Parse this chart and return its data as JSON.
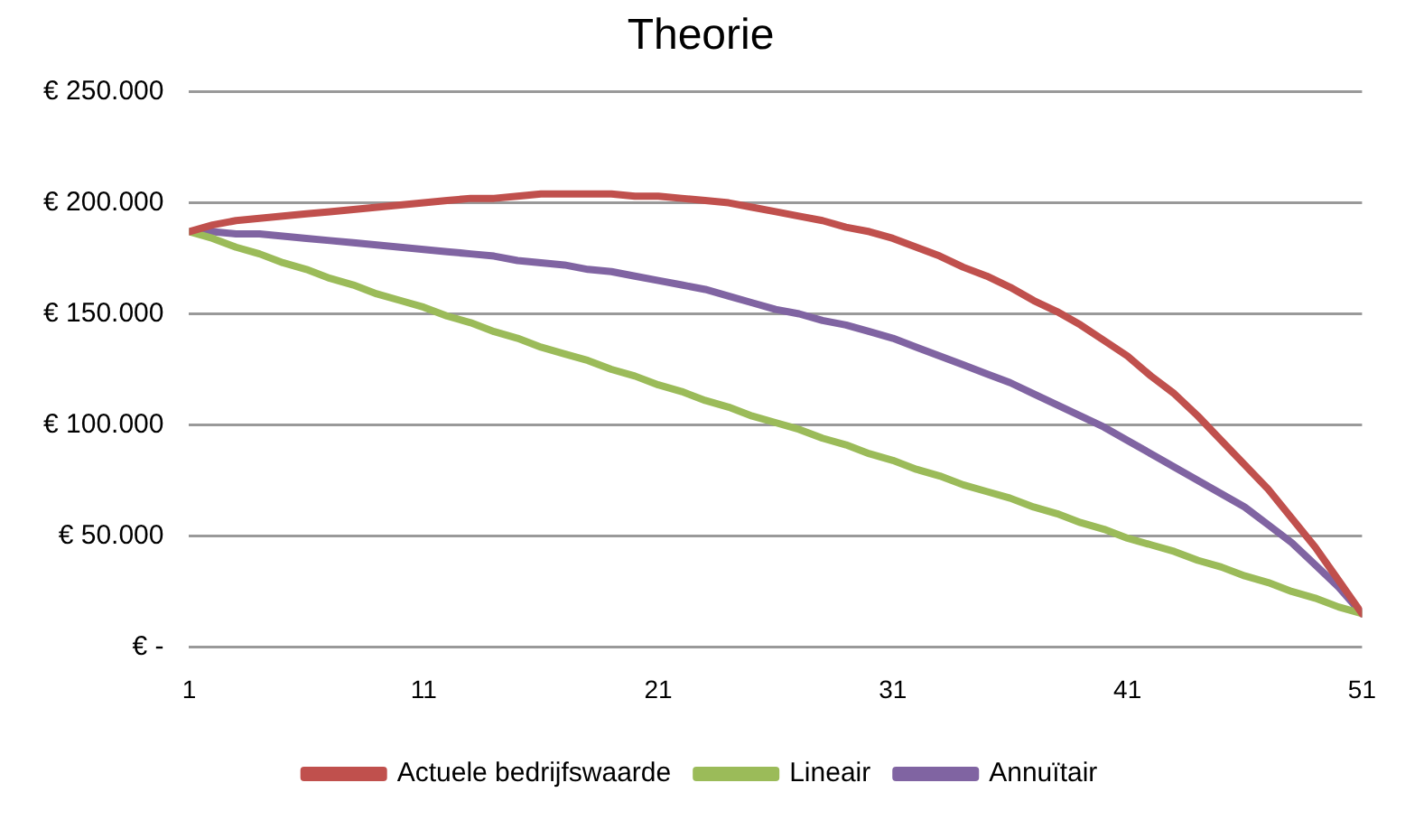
{
  "chart_data": {
    "type": "line",
    "title": "Theorie",
    "x": [
      1,
      2,
      3,
      4,
      5,
      6,
      7,
      8,
      9,
      10,
      11,
      12,
      13,
      14,
      15,
      16,
      17,
      18,
      19,
      20,
      21,
      22,
      23,
      24,
      25,
      26,
      27,
      28,
      29,
      30,
      31,
      32,
      33,
      34,
      35,
      36,
      37,
      38,
      39,
      40,
      41,
      42,
      43,
      44,
      45,
      46,
      47,
      48,
      49,
      50,
      51
    ],
    "xlim": [
      1,
      51
    ],
    "xticks": [
      1,
      11,
      21,
      31,
      41,
      51
    ],
    "ylim": [
      0,
      250000
    ],
    "yticks": [
      {
        "value": 0,
        "label": "€ -"
      },
      {
        "value": 50000,
        "label": "€ 50.000"
      },
      {
        "value": 100000,
        "label": "€ 100.000"
      },
      {
        "value": 150000,
        "label": "€ 150.000"
      },
      {
        "value": 200000,
        "label": "€ 200.000"
      },
      {
        "value": 250000,
        "label": "€ 250.000"
      }
    ],
    "grid": "y",
    "legend": "bottom",
    "marker": "none",
    "line_style": "solid",
    "series": [
      {
        "name": "Actuele bedrijfswaarde",
        "color": "#c0504d",
        "values": [
          187000,
          190000,
          192000,
          193000,
          194000,
          195000,
          196000,
          197000,
          198000,
          199000,
          200000,
          201000,
          202000,
          202000,
          203000,
          204000,
          204000,
          204000,
          204000,
          203000,
          203000,
          202000,
          201000,
          200000,
          198000,
          196000,
          194000,
          192000,
          189000,
          187000,
          184000,
          180000,
          176000,
          171000,
          167000,
          162000,
          156000,
          151000,
          145000,
          138000,
          131000,
          122000,
          114000,
          104000,
          93000,
          82000,
          71000,
          58000,
          45000,
          30000,
          15000
        ]
      },
      {
        "name": "Lineair",
        "color": "#9bbb59",
        "values": [
          187000,
          184000,
          180000,
          177000,
          173000,
          170000,
          166000,
          163000,
          159000,
          156000,
          153000,
          149000,
          146000,
          142000,
          139000,
          135000,
          132000,
          129000,
          125000,
          122000,
          118000,
          115000,
          111000,
          108000,
          104000,
          101000,
          98000,
          94000,
          91000,
          87000,
          84000,
          80000,
          77000,
          73000,
          70000,
          67000,
          63000,
          60000,
          56000,
          53000,
          49000,
          46000,
          43000,
          39000,
          36000,
          32000,
          29000,
          25000,
          22000,
          18000,
          15000
        ]
      },
      {
        "name": "Annuïtair",
        "color": "#8064a2",
        "values": [
          187000,
          187000,
          186000,
          186000,
          185000,
          184000,
          183000,
          182000,
          181000,
          180000,
          179000,
          178000,
          177000,
          176000,
          174000,
          173000,
          172000,
          170000,
          169000,
          167000,
          165000,
          163000,
          161000,
          158000,
          155000,
          152000,
          150000,
          147000,
          145000,
          142000,
          139000,
          135000,
          131000,
          127000,
          123000,
          119000,
          114000,
          109000,
          104000,
          99000,
          93000,
          87000,
          81000,
          75000,
          69000,
          63000,
          55000,
          47000,
          37000,
          27000,
          15000
        ]
      }
    ]
  }
}
